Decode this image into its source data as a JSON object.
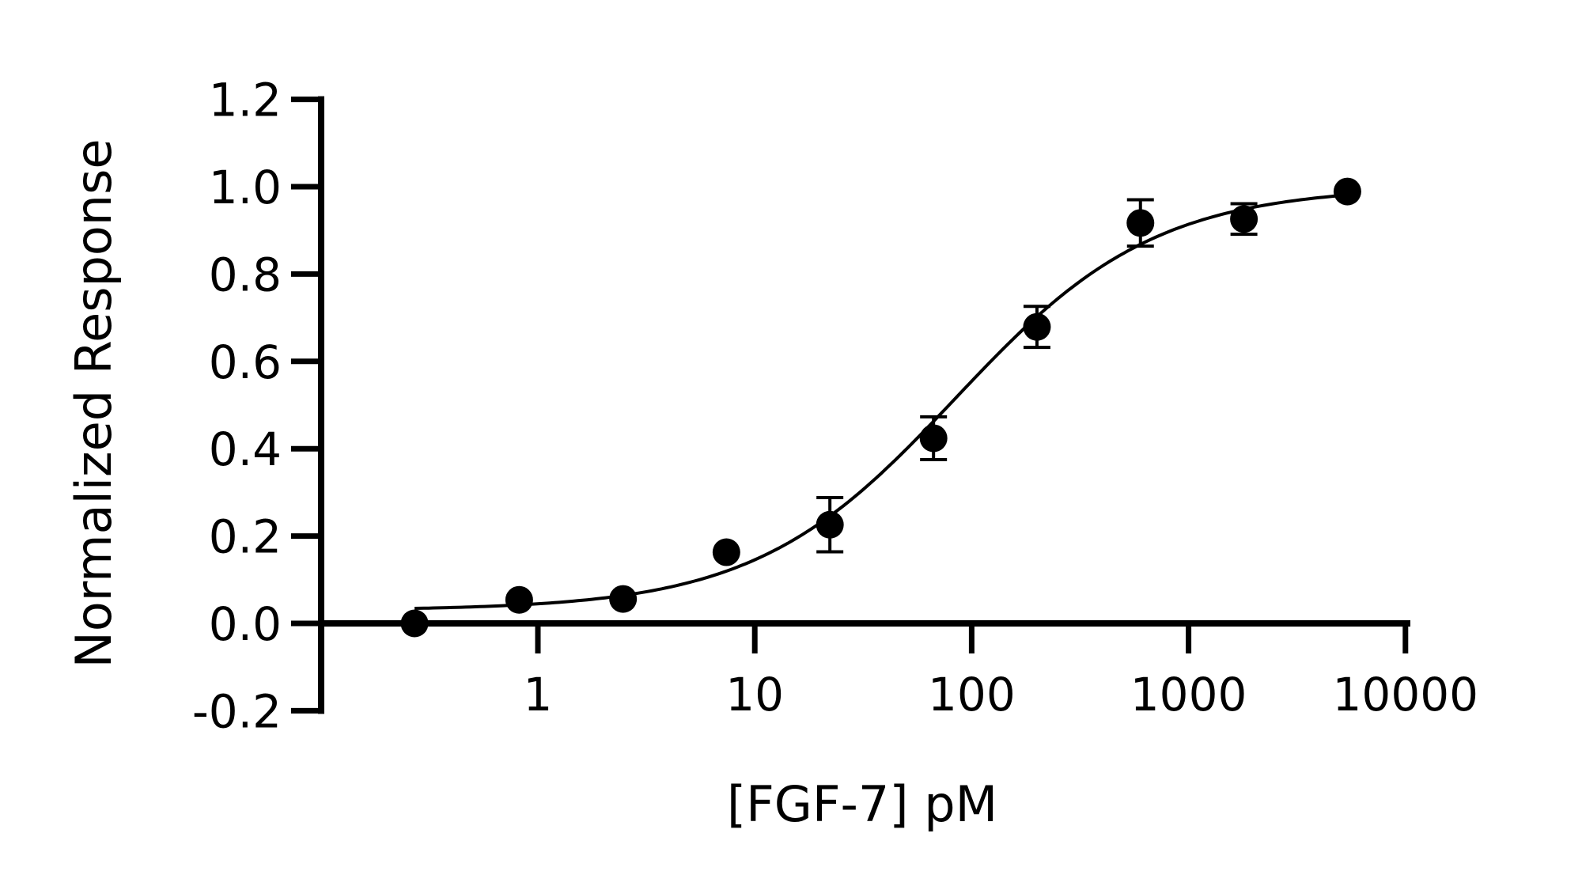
{
  "chart_data": {
    "type": "scatter",
    "title": "",
    "xlabel": "[FGF-7] pM",
    "ylabel": "Normalized Response",
    "xscale": "log",
    "xlim": [
      0.2,
      10000
    ],
    "ylim": [
      -0.2,
      1.2
    ],
    "x_ticks": [
      1,
      10,
      100,
      1000,
      10000
    ],
    "x_tick_labels": [
      "1",
      "10",
      "100",
      "1000",
      "10000"
    ],
    "y_ticks": [
      -0.2,
      0.0,
      0.2,
      0.4,
      0.6,
      0.8,
      1.0,
      1.2
    ],
    "y_tick_labels": [
      "-0.2",
      "0.0",
      "0.2",
      "0.4",
      "0.6",
      "0.8",
      "1.0",
      "1.2"
    ],
    "grid": false,
    "legend": null,
    "series": [
      {
        "name": "FGF-7",
        "marker": "filled-circle",
        "color": "#000000",
        "x": [
          0.27,
          0.82,
          2.47,
          7.4,
          22.2,
          66.7,
          200,
          600,
          1800,
          5400
        ],
        "y": [
          0.0,
          0.054,
          0.056,
          0.163,
          0.226,
          0.424,
          0.679,
          0.917,
          0.926,
          0.989
        ],
        "error": [
          null,
          null,
          null,
          null,
          0.062,
          0.049,
          0.047,
          0.053,
          0.035,
          null
        ]
      }
    ],
    "fit_curve": {
      "model": "4PL",
      "bottom": 0.03,
      "top": 1.0,
      "ec50": 84,
      "hill": 0.94,
      "x_range": [
        0.27,
        5400
      ],
      "color": "#000000"
    }
  }
}
